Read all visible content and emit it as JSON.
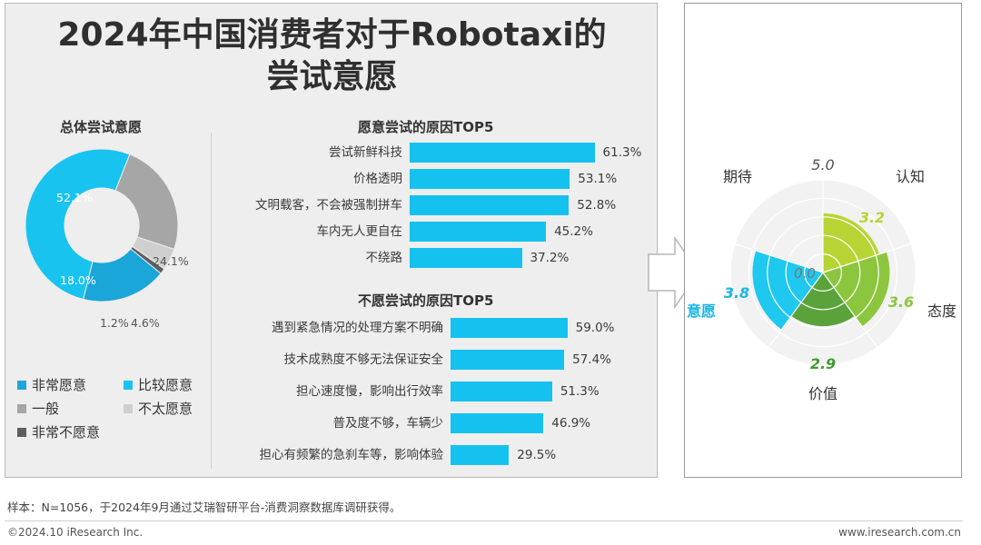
{
  "title_line1": "2024年中国消费者对于Robotaxi的",
  "title_line2": "尝试意愿",
  "overall": {
    "subtitle": "总体尝试意愿",
    "legend": [
      "非常愿意",
      "比较愿意",
      "一般",
      "不太愿意",
      "非常不愿意"
    ],
    "label_texts": [
      "52.1%",
      "18.0%",
      "24.1%",
      "1.2%",
      "4.6%"
    ]
  },
  "willing": {
    "subtitle": "愿意尝试的原因TOP5"
  },
  "unwilling": {
    "subtitle": "不愿尝试的原因TOP5"
  },
  "radar": {
    "labels": {
      "qidai": "期待",
      "renzhi": "认知",
      "taidu": "态度",
      "jiazhi": "价值",
      "yiyuan": "意愿"
    },
    "max_label": "5.0",
    "min_label": "0.0",
    "value_labels": {
      "renzhi": "3.2",
      "taidu": "3.6",
      "jiazhi": "2.9",
      "yiyuan": "3.8"
    }
  },
  "footer": {
    "note": "样本：N=1056，于2024年9月通过艾瑞智研平台-消费洞察数据库调研获得。",
    "copyright": "©2024.10 iResearch Inc.",
    "website": "www.iresearch.com.cn"
  },
  "colors": {
    "very_willing": "#1aa6d9",
    "willing": "#19c3ef",
    "neutral": "#a6a6a6",
    "unwilling": "#cfcfcf",
    "very_unwilling": "#5e5e5e",
    "bar": "#15c2ef",
    "radar_cognition": "#b6d534",
    "radar_attitude": "#8cc63f",
    "radar_value": "#5aa33b",
    "radar_willingness": "#1ec8ef",
    "radar_willingness_label": "#18b7e6",
    "radar_value_label": "#3e9c2e"
  },
  "chart_data": [
    {
      "type": "pie",
      "title": "总体尝试意愿",
      "categories": [
        "非常愿意",
        "比较愿意",
        "一般",
        "不太愿意",
        "非常不愿意"
      ],
      "values": [
        18.0,
        52.1,
        24.1,
        4.6,
        1.2
      ],
      "legend_position": "bottom"
    },
    {
      "type": "bar",
      "title": "愿意尝试的原因TOP5",
      "categories": [
        "尝试新鲜科技",
        "价格透明",
        "文明载客，不会被强制拼车",
        "车内无人更自在",
        "不绕路"
      ],
      "values": [
        61.3,
        53.1,
        52.8,
        45.2,
        37.2
      ],
      "value_labels": [
        "61.3%",
        "53.1%",
        "52.8%",
        "45.2%",
        "37.2%"
      ],
      "orientation": "horizontal"
    },
    {
      "type": "bar",
      "title": "不愿尝试的原因TOP5",
      "categories": [
        "遇到紧急情况的处理方案不明确",
        "技术成熟度不够无法保证安全",
        "担心速度慢，影响出行效率",
        "普及度不够，车辆少",
        "担心有频繁的急刹车等，影响体验"
      ],
      "values": [
        59.0,
        57.4,
        51.3,
        46.9,
        29.5
      ],
      "value_labels": [
        "59.0%",
        "57.4%",
        "51.3%",
        "46.9%",
        "29.5%"
      ],
      "orientation": "horizontal"
    },
    {
      "type": "radar",
      "categories": [
        "期待",
        "认知",
        "态度",
        "价值",
        "意愿"
      ],
      "values": [
        null,
        3.2,
        3.6,
        2.9,
        3.8
      ],
      "range": [
        0,
        5
      ]
    }
  ]
}
